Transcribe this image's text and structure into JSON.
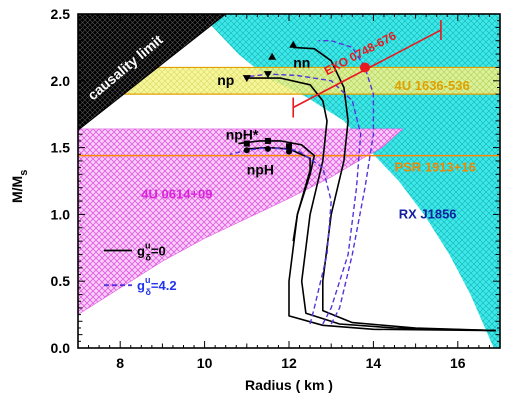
{
  "chart_data": {
    "type": "line",
    "xlabel": "Radius ( km )",
    "ylabel_main": "M/M",
    "ylabel_sub": "s",
    "xlim": [
      7,
      17
    ],
    "ylim": [
      0,
      2.5
    ],
    "xticks": [
      "8",
      "10",
      "12",
      "14",
      "16"
    ],
    "yticks": [
      "0.0",
      "0.5",
      "1.0",
      "1.5",
      "2.0",
      "2.5"
    ],
    "xtick_values": [
      8,
      10,
      12,
      14,
      16
    ],
    "ytick_values": [
      0,
      0.5,
      1.0,
      1.5,
      2.0,
      2.5
    ],
    "colors": {
      "causality": "#000000",
      "rxj": "#3ee8e8",
      "band_4u1636": "#f2f27a",
      "band_4u0614": "#f08cf0",
      "psr_line": "#ff8800",
      "exo": "#e8191f",
      "solid": "#000000",
      "dashed": "#5533dd",
      "label_4u1636": "#e0a000",
      "label_psr": "#ee8800",
      "label_4u0614": "#dd22dd",
      "label_rxj": "#1020a0",
      "label_exo": "#e8191f",
      "legend_dashed": "#2233ee"
    },
    "regions": {
      "causality_label": "causality limit",
      "band_4u1636": {
        "label": "4U 1636-536",
        "ymin": 1.9,
        "ymax": 2.1
      },
      "psr": {
        "label": "PSR 1913+16",
        "y": 1.44
      },
      "band_4u0614": {
        "label": "4U 0614+09"
      },
      "rxj": {
        "label": "RX J1856"
      }
    },
    "exo": {
      "label": "EXO 0748-676",
      "point": [
        13.8,
        2.1
      ],
      "err_start": [
        12.1,
        1.8
      ],
      "err_end": [
        15.6,
        2.38
      ]
    },
    "legend": [
      {
        "label_pre": "g",
        "label_sup": "u",
        "label_sub": "δ",
        "label_post": "=0",
        "style": "solid"
      },
      {
        "label_pre": "g",
        "label_sup": "u",
        "label_sub": "δ",
        "label_post": "=4.2",
        "style": "dashed"
      }
    ],
    "curve_labels": [
      "nn",
      "np",
      "npH*",
      "npH"
    ],
    "series": [
      {
        "name": "nn",
        "style": "solid",
        "x": [
          16.9,
          15.0,
          13.5,
          12.8,
          12.8,
          13.0,
          13.3,
          13.4,
          13.3,
          13.0,
          12.6,
          12.1
        ],
        "y": [
          0.13,
          0.15,
          0.19,
          0.28,
          0.5,
          1.0,
          1.4,
          1.7,
          1.95,
          2.15,
          2.24,
          2.25
        ]
      },
      {
        "name": "np",
        "style": "solid",
        "x": [
          16.9,
          14.5,
          13.2,
          12.4,
          12.3,
          12.5,
          12.8,
          12.9,
          12.8,
          12.5,
          11.8,
          11.0
        ],
        "y": [
          0.13,
          0.15,
          0.18,
          0.26,
          0.5,
          1.0,
          1.4,
          1.7,
          1.85,
          1.97,
          2.02,
          2.02
        ]
      },
      {
        "name": "npH",
        "style": "solid",
        "x": [
          16.9,
          14.0,
          12.8,
          12.0,
          12.0,
          12.2,
          12.5,
          12.5,
          12.0,
          11.5,
          11.0
        ],
        "y": [
          0.13,
          0.14,
          0.17,
          0.24,
          0.5,
          1.0,
          1.33,
          1.42,
          1.49,
          1.5,
          1.49
        ]
      },
      {
        "name": "npH*",
        "style": "solid",
        "x": [
          12.1,
          12.2,
          12.5,
          12.6,
          12.3,
          11.8,
          11.3,
          10.8
        ],
        "y": [
          0.8,
          1.0,
          1.3,
          1.44,
          1.52,
          1.55,
          1.55,
          1.53
        ]
      },
      {
        "name": "nn-dashed",
        "style": "dashed",
        "x": [
          13.0,
          13.2,
          13.5,
          13.8,
          14.0,
          14.0,
          13.8,
          13.5,
          13.0,
          12.7
        ],
        "y": [
          0.18,
          0.3,
          0.7,
          1.2,
          1.6,
          1.9,
          2.1,
          2.25,
          2.3,
          2.3
        ]
      },
      {
        "name": "np-dashed",
        "style": "dashed",
        "x": [
          12.8,
          13.0,
          13.4,
          13.6,
          13.7,
          13.5,
          13.0,
          12.2,
          11.5,
          11.0
        ],
        "y": [
          0.18,
          0.3,
          0.7,
          1.2,
          1.6,
          1.85,
          2.0,
          2.04,
          2.05,
          2.03
        ]
      },
      {
        "name": "npH-dashed",
        "style": "dashed",
        "x": [
          12.5,
          12.6,
          12.9,
          13.0,
          12.8,
          12.2,
          11.5,
          11.0,
          10.6
        ],
        "y": [
          0.18,
          0.3,
          0.7,
          1.1,
          1.35,
          1.48,
          1.5,
          1.48,
          1.45
        ]
      }
    ],
    "markers": [
      {
        "shape": "triangle-up",
        "points": [
          [
            11.6,
            2.18
          ],
          [
            12.1,
            2.27
          ]
        ]
      },
      {
        "shape": "triangle-down",
        "points": [
          [
            11.0,
            2.02
          ],
          [
            11.5,
            2.05
          ]
        ]
      },
      {
        "shape": "square",
        "points": [
          [
            11.0,
            1.53
          ],
          [
            11.5,
            1.55
          ],
          [
            12.0,
            1.51
          ]
        ]
      },
      {
        "shape": "circle",
        "points": [
          [
            11.0,
            1.48
          ],
          [
            11.5,
            1.49
          ],
          [
            12.0,
            1.47
          ]
        ]
      }
    ]
  }
}
